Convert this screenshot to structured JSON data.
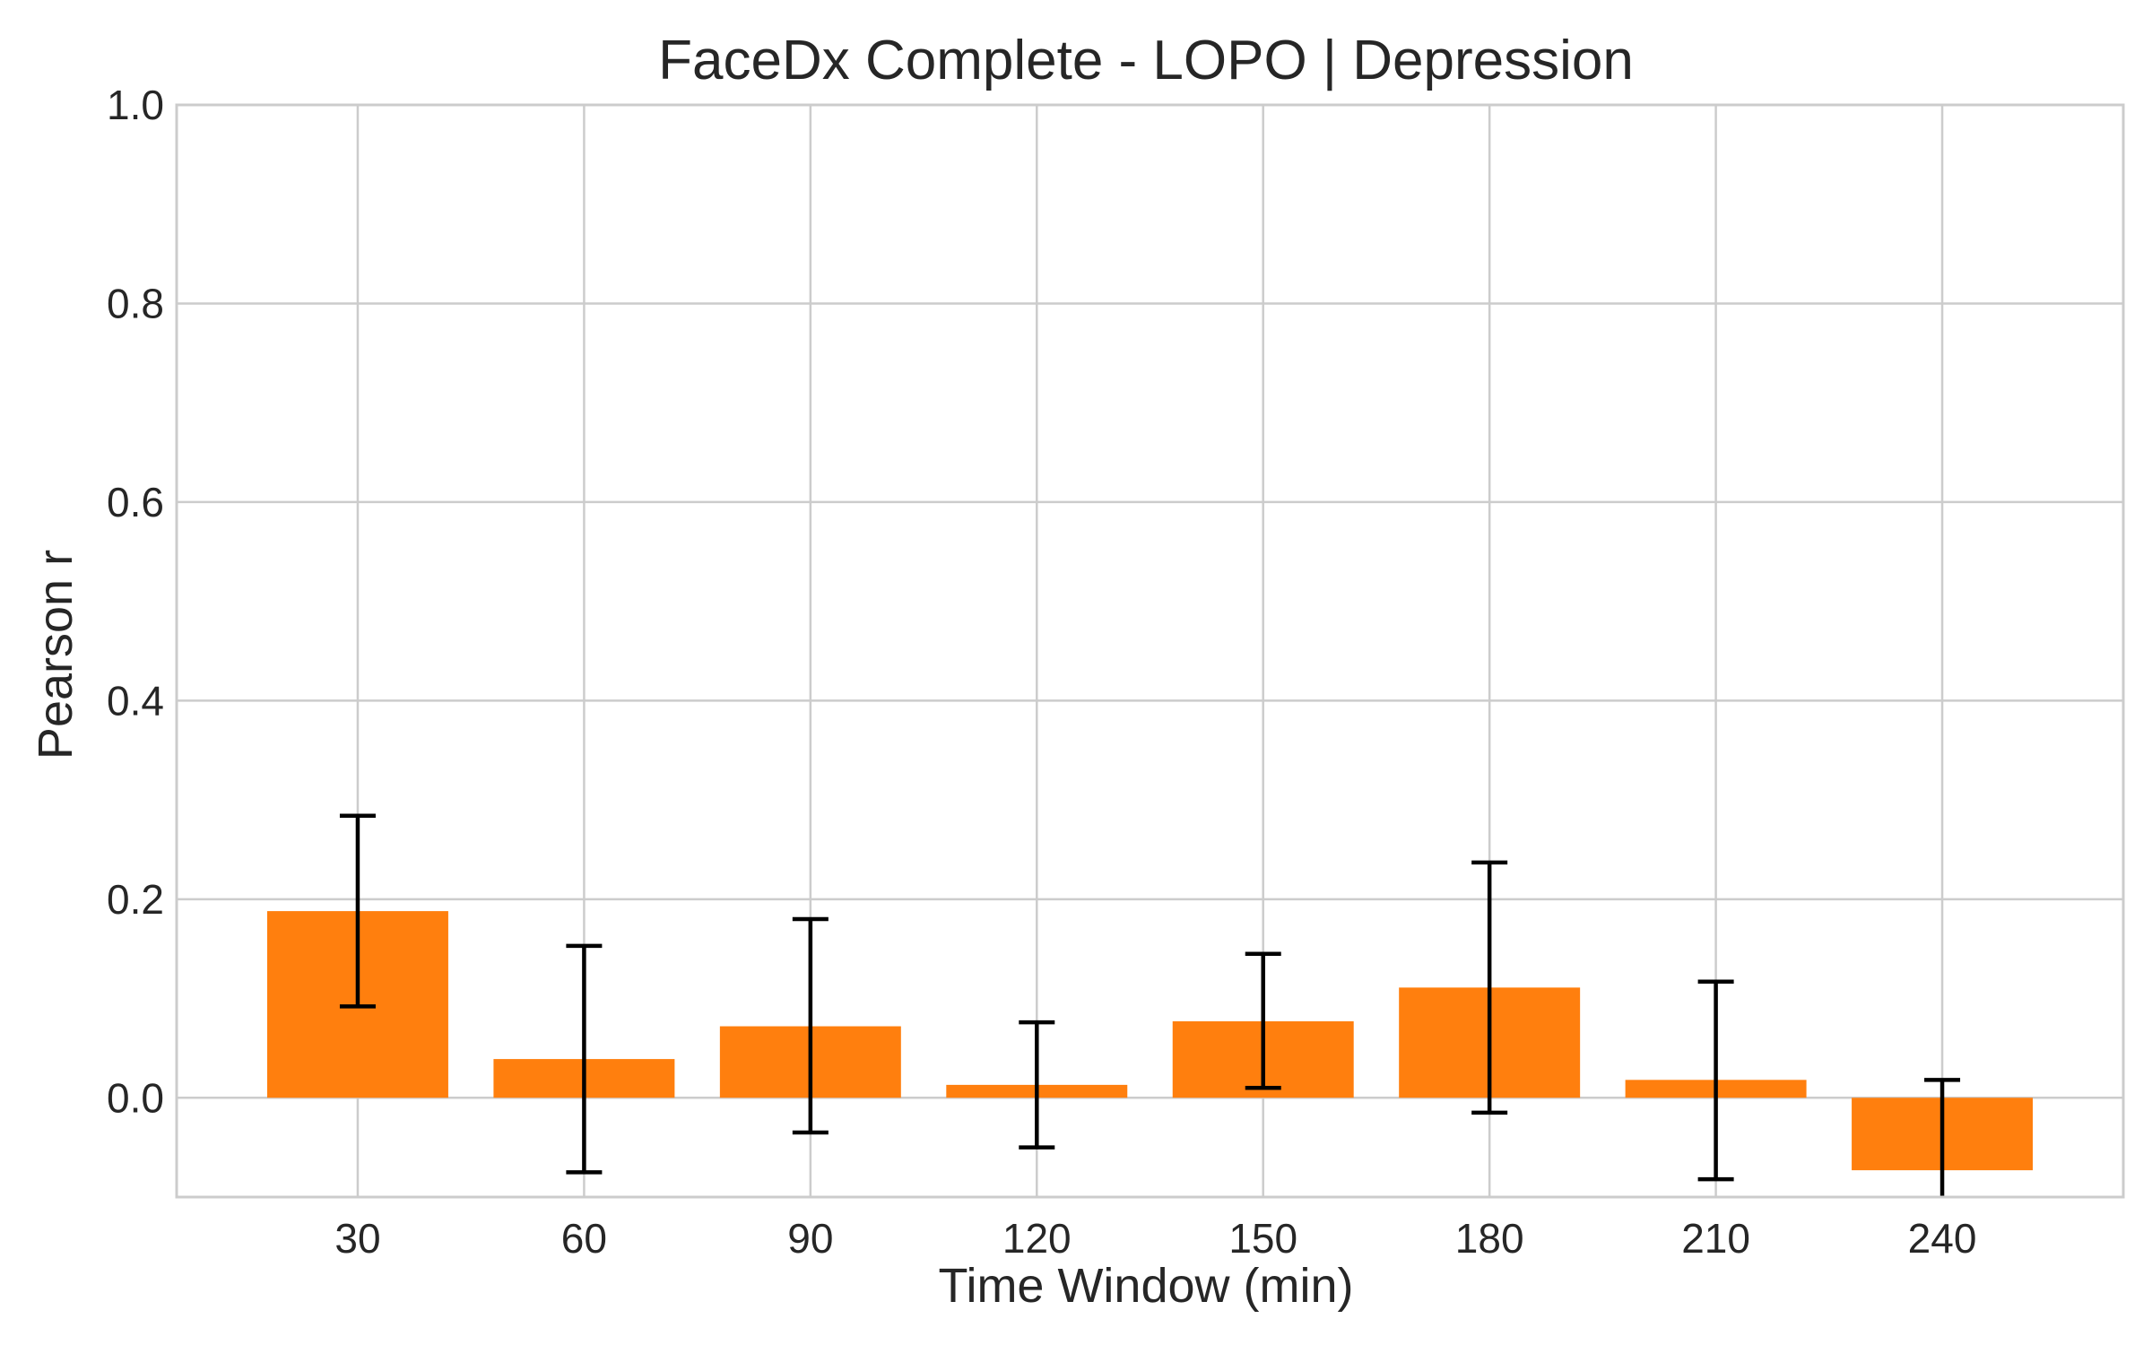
{
  "chart_data": {
    "type": "bar",
    "title": "FaceDx Complete - LOPO | Depression",
    "xlabel": "Time Window (min)",
    "ylabel": "Pearson r",
    "categories": [
      "30",
      "60",
      "90",
      "120",
      "150",
      "180",
      "210",
      "240"
    ],
    "values": [
      0.188,
      0.039,
      0.072,
      0.013,
      0.077,
      0.111,
      0.018,
      -0.073
    ],
    "error_low": [
      0.092,
      -0.075,
      -0.035,
      -0.05,
      0.01,
      -0.015,
      -0.082,
      -0.105
    ],
    "error_high": [
      0.284,
      0.153,
      0.18,
      0.076,
      0.145,
      0.237,
      0.117,
      0.018
    ],
    "ylim": [
      -0.1,
      1.0
    ],
    "yticks": [
      "0.0",
      "0.2",
      "0.4",
      "0.6",
      "0.8",
      "1.0"
    ],
    "grid": true,
    "bar_color": "#ff7f0e",
    "error_color": "#000000",
    "grid_color": "#cccccc"
  }
}
